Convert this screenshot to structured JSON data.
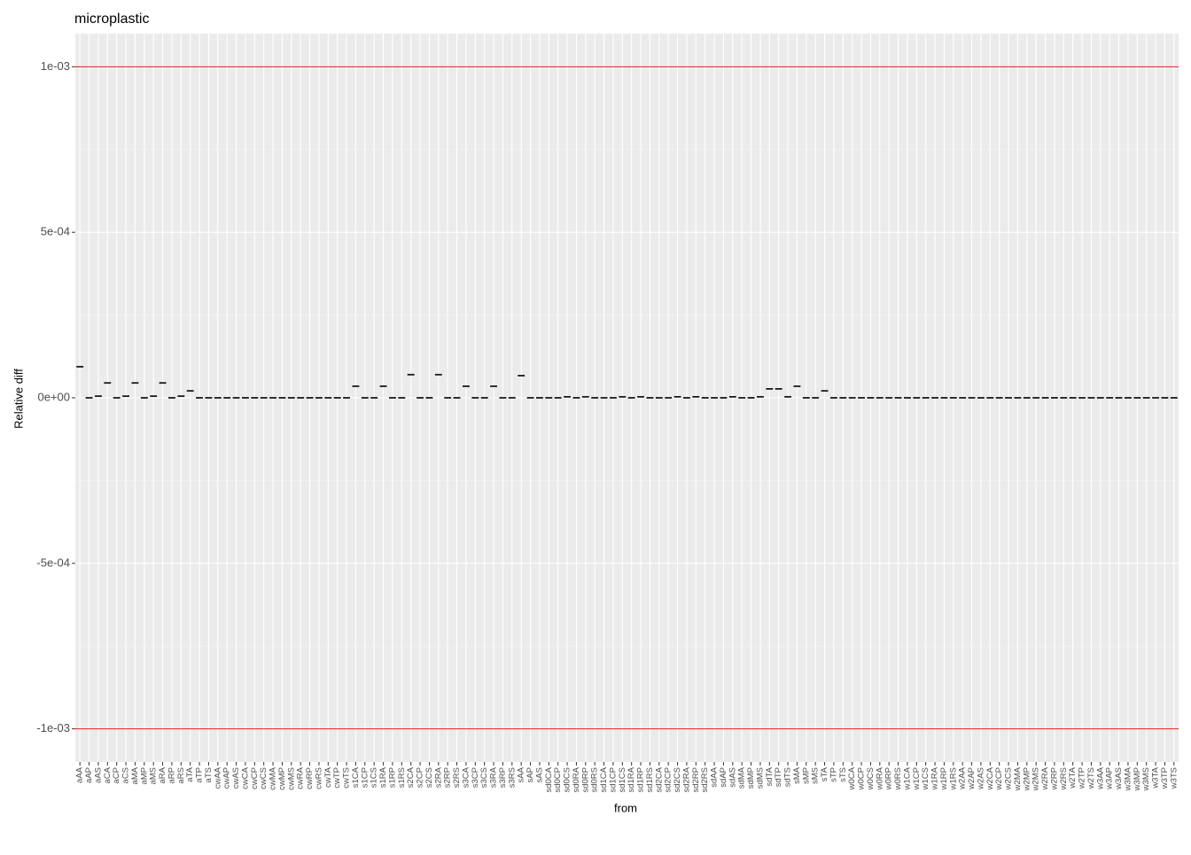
{
  "chart_data": {
    "type": "crossbar",
    "title": "microplastic",
    "x_label": "from",
    "y_label": "Relative diff",
    "categories": [
      "aAA",
      "aAP",
      "aAS",
      "aCA",
      "aCP",
      "aCS",
      "aMA",
      "aMP",
      "aMS",
      "aRA",
      "aRP",
      "aRS",
      "aTA",
      "aTP",
      "aTS",
      "cwAA",
      "cwAP",
      "cwAS",
      "cwCA",
      "cwCP",
      "cwCS",
      "cwMA",
      "cwMP",
      "cwMS",
      "cwRA",
      "cwRP",
      "cwRS",
      "cwTA",
      "cwTP",
      "cwTS",
      "s1CA",
      "s1CP",
      "s1CS",
      "s1RA",
      "s1RP",
      "s1RS",
      "s2CA",
      "s2CP",
      "s2CS",
      "s2RA",
      "s2RP",
      "s2RS",
      "s3CA",
      "s3CP",
      "s3CS",
      "s3RA",
      "s3RP",
      "s3RS",
      "sAA",
      "sAP",
      "sAS",
      "sd0CA",
      "sd0CP",
      "sd0CS",
      "sd0RA",
      "sd0RP",
      "sd0RS",
      "sd1CA",
      "sd1CP",
      "sd1CS",
      "sd1RA",
      "sd1RP",
      "sd1RS",
      "sd2CA",
      "sd2CP",
      "sd2CS",
      "sd2RA",
      "sd2RP",
      "sd2RS",
      "sdAA",
      "sdAP",
      "sdAS",
      "sdMA",
      "sdMP",
      "sdMS",
      "sdTA",
      "sdTP",
      "sdTS",
      "sMA",
      "sMP",
      "sMS",
      "sTA",
      "sTP",
      "sTS",
      "w0CA",
      "w0CP",
      "w0CS",
      "w0RA",
      "w0RP",
      "w0RS",
      "w1CA",
      "w1CP",
      "w1CS",
      "w1RA",
      "w1RP",
      "w1RS",
      "w2AA",
      "w2AP",
      "w2AS",
      "w2CA",
      "w2CP",
      "w2CS",
      "w2MA",
      "w2MP",
      "w2MS",
      "w2RA",
      "w2RP",
      "w2RS",
      "w2TA",
      "w2TP",
      "w2TS",
      "w3AA",
      "w3AP",
      "w3AS",
      "w3MA",
      "w3MP",
      "w3MS",
      "w3TA",
      "w3TP",
      "w3TS"
    ],
    "values": [
      9.4e-05,
      0,
      5e-06,
      4.5e-05,
      0,
      5e-06,
      4.5e-05,
      0,
      5e-06,
      4.5e-05,
      0,
      5e-06,
      2.1e-05,
      0,
      0,
      0,
      0,
      0,
      0,
      0,
      0,
      0,
      0,
      0,
      0,
      0,
      0,
      0,
      0,
      0,
      3.5e-05,
      0,
      0,
      3.5e-05,
      0,
      0,
      7e-05,
      0,
      0,
      7e-05,
      0,
      0,
      3.5e-05,
      0,
      0,
      3.5e-05,
      0,
      0,
      6.7e-05,
      0,
      0,
      0,
      0,
      3e-06,
      0,
      3e-06,
      0,
      0,
      0,
      3e-06,
      0,
      3e-06,
      0,
      0,
      0,
      3e-06,
      0,
      3e-06,
      0,
      0,
      0,
      3e-06,
      0,
      0,
      3e-06,
      2.7e-05,
      2.7e-05,
      3e-06,
      3.5e-05,
      0,
      0,
      2.1e-05,
      0,
      0,
      0,
      0,
      0,
      0,
      0,
      0,
      0,
      0,
      0,
      0,
      0,
      0,
      0,
      0,
      0,
      0,
      0,
      0,
      0,
      0,
      0,
      0,
      0,
      0,
      0,
      0,
      0,
      0,
      0,
      0,
      0,
      0,
      0,
      0,
      0,
      0
    ],
    "color": "#1a1a1a",
    "ylim": [
      -0.0011,
      0.0011
    ],
    "yticks": [
      {
        "value": -0.001,
        "label": "-1e-03"
      },
      {
        "value": -0.0005,
        "label": "-5e-04"
      },
      {
        "value": 0,
        "label": "0e+00"
      },
      {
        "value": 0.0005,
        "label": "5e-04"
      },
      {
        "value": 0.001,
        "label": "1e-03"
      }
    ],
    "hlines": [
      0.001,
      -0.001
    ],
    "hline_color": "#e41a1c",
    "grid": true
  }
}
